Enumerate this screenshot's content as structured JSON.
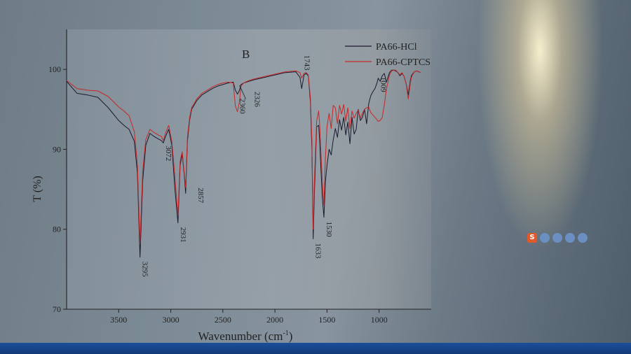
{
  "chart_data": {
    "type": "line",
    "panel_label": "B",
    "xlabel": "Wavenumber (cm",
    "xlabel_sup": "-1",
    "xlabel_close": ")",
    "ylabel": "T (%)",
    "xlim": [
      4000,
      500
    ],
    "ylim": [
      70,
      105
    ],
    "x_ticks": [
      3500,
      3000,
      2500,
      2000,
      1500,
      1000
    ],
    "y_ticks": [
      100,
      90,
      80,
      70
    ],
    "legend_position": "top-right",
    "series": [
      {
        "name": "PA66-HCl",
        "color": "#1a1a2e",
        "x": [
          4000,
          3900,
          3800,
          3700,
          3600,
          3500,
          3450,
          3400,
          3350,
          3320,
          3295,
          3270,
          3240,
          3200,
          3160,
          3120,
          3090,
          3072,
          3050,
          3020,
          2990,
          2960,
          2931,
          2910,
          2890,
          2870,
          2857,
          2840,
          2820,
          2800,
          2750,
          2700,
          2650,
          2600,
          2550,
          2500,
          2450,
          2400,
          2380,
          2360,
          2340,
          2326,
          2300,
          2250,
          2200,
          2100,
          2000,
          1900,
          1800,
          1760,
          1743,
          1720,
          1700,
          1680,
          1660,
          1645,
          1633,
          1620,
          1600,
          1580,
          1570,
          1560,
          1545,
          1530,
          1515,
          1500,
          1480,
          1460,
          1440,
          1420,
          1400,
          1380,
          1360,
          1340,
          1320,
          1300,
          1280,
          1260,
          1240,
          1220,
          1200,
          1180,
          1160,
          1140,
          1120,
          1100,
          1080,
          1060,
          1040,
          1020,
          1009,
          990,
          970,
          950,
          930,
          900,
          880,
          860,
          840,
          820,
          800,
          780,
          760,
          740,
          720,
          700,
          690,
          680,
          660,
          640,
          620,
          600
        ],
        "y": [
          98.5,
          97,
          96.8,
          96.5,
          95.2,
          93.6,
          93,
          92.5,
          91,
          87,
          76.5,
          86,
          90.5,
          92,
          91.6,
          91.3,
          91.1,
          90.8,
          91.6,
          92.5,
          90.5,
          85,
          80.8,
          88,
          89.4,
          86.7,
          84.5,
          91,
          93.6,
          95,
          96.1,
          96.8,
          97.2,
          97.6,
          97.9,
          98.1,
          98.3,
          98.4,
          97.4,
          96.9,
          97.4,
          98.1,
          98.3,
          98.5,
          98.7,
          99,
          99.3,
          99.6,
          99.7,
          99,
          97.6,
          99.3,
          99.5,
          99.2,
          96,
          90,
          78.8,
          85,
          92.8,
          93,
          91,
          88,
          84,
          81.5,
          86,
          88,
          90,
          89.3,
          91.2,
          92.6,
          91.5,
          93.7,
          92.4,
          94,
          91.8,
          93.4,
          90.7,
          94,
          91.9,
          92.5,
          95,
          93.6,
          94,
          95,
          93.2,
          95.7,
          96.7,
          97.2,
          97.6,
          98.3,
          98.9,
          98.5,
          99.2,
          99.5,
          98.4,
          99.6,
          99.9,
          99.9,
          99.8,
          99.6,
          99.2,
          99.5,
          99.1,
          98.2,
          96.8,
          98.6,
          99.2,
          99.4,
          99.7,
          99.8,
          99.7,
          99.6
        ]
      },
      {
        "name": "PA66-CPTCS",
        "color": "#c62828",
        "x": [
          4000,
          3900,
          3800,
          3700,
          3600,
          3500,
          3450,
          3400,
          3350,
          3320,
          3295,
          3270,
          3240,
          3200,
          3160,
          3120,
          3090,
          3072,
          3050,
          3020,
          2990,
          2960,
          2931,
          2910,
          2890,
          2870,
          2857,
          2840,
          2820,
          2800,
          2750,
          2700,
          2650,
          2600,
          2550,
          2500,
          2450,
          2400,
          2380,
          2360,
          2340,
          2326,
          2300,
          2250,
          2200,
          2100,
          2000,
          1900,
          1800,
          1760,
          1743,
          1720,
          1700,
          1680,
          1660,
          1645,
          1633,
          1620,
          1600,
          1580,
          1570,
          1560,
          1545,
          1530,
          1515,
          1500,
          1480,
          1460,
          1440,
          1420,
          1400,
          1380,
          1360,
          1340,
          1320,
          1300,
          1280,
          1260,
          1240,
          1220,
          1200,
          1180,
          1160,
          1140,
          1120,
          1100,
          1080,
          1060,
          1040,
          1020,
          1009,
          990,
          970,
          950,
          930,
          900,
          880,
          860,
          840,
          820,
          800,
          780,
          760,
          740,
          720,
          700,
          690,
          680,
          660,
          640,
          620,
          600
        ],
        "y": [
          98.6,
          97.6,
          97.4,
          97.3,
          96.6,
          95.3,
          94.8,
          94.2,
          92.2,
          88,
          78.2,
          87.2,
          91.2,
          92.5,
          92.1,
          91.8,
          91.6,
          91.1,
          92,
          93,
          91,
          86.5,
          81.8,
          88.5,
          89.7,
          87,
          85.2,
          91.5,
          93.9,
          95.2,
          96.3,
          97,
          97.4,
          97.8,
          98.1,
          98.3,
          98.4,
          98.3,
          95.4,
          94.7,
          96,
          97.9,
          98.3,
          98.6,
          98.8,
          99.1,
          99.4,
          99.7,
          99.8,
          99.6,
          98.9,
          99.5,
          99.6,
          99.3,
          96.5,
          91,
          80,
          86.5,
          93.5,
          94.8,
          93,
          90,
          86,
          83,
          89,
          92.8,
          94.5,
          92.6,
          95.5,
          95.2,
          93.2,
          95.5,
          94.4,
          95.6,
          93.5,
          95.2,
          92.6,
          94.8,
          93.9,
          94.5,
          94.9,
          93.9,
          94.5,
          95,
          95.2,
          95.3,
          94.6,
          94.3,
          94,
          93.7,
          93.5,
          93.6,
          94,
          95.5,
          97.5,
          99.3,
          99.8,
          99.9,
          99.9,
          99.6,
          99.3,
          99.6,
          99.1,
          98.2,
          96.3,
          98.3,
          99,
          99.3,
          99.7,
          99.8,
          99.7,
          99.6
        ]
      }
    ],
    "annotations": [
      "3295",
      "3072",
      "2931",
      "2857",
      "2360",
      "2326",
      "1743",
      "1633",
      "1530",
      "1009"
    ]
  },
  "tray": {
    "icons": [
      "sogou-s-icon",
      "punctuation-icon",
      "mic-icon",
      "keyboard-icon",
      "settings-icon"
    ],
    "s_glyph": "S"
  }
}
